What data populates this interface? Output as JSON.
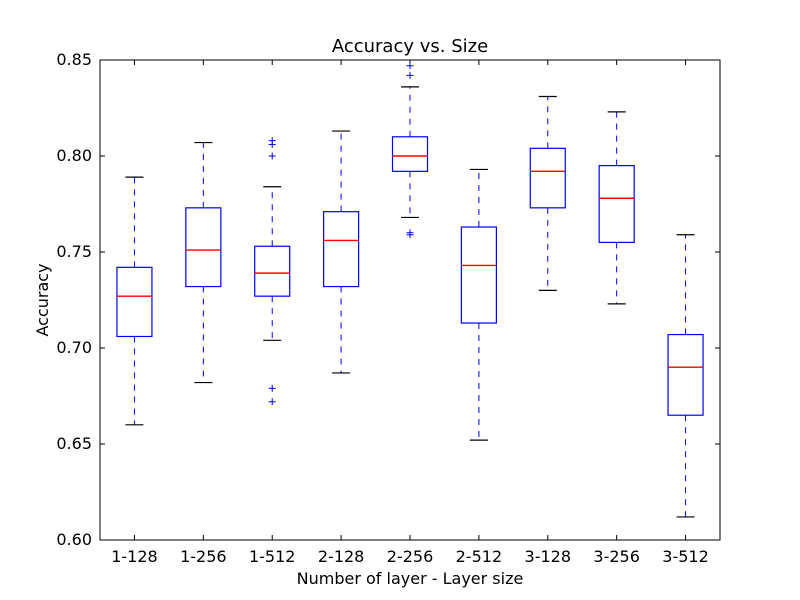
{
  "chart_data": {
    "type": "box",
    "title": "Accuracy vs. Size",
    "xlabel": "Number of layer - Layer size",
    "ylabel": "Accuracy",
    "ylim": [
      0.6,
      0.85
    ],
    "yticks": [
      "0.60",
      "0.65",
      "0.70",
      "0.75",
      "0.80",
      "0.85"
    ],
    "grid": false,
    "colors": {
      "box": "#0000ff",
      "median": "#ff0000",
      "whisker": "#0000ff",
      "cap": "#000000",
      "outlier": "#0000ff"
    },
    "categories": [
      "1-128",
      "1-256",
      "1-512",
      "2-128",
      "2-256",
      "2-512",
      "3-128",
      "3-256",
      "3-512"
    ],
    "boxes": [
      {
        "whislo": 0.66,
        "q1": 0.706,
        "med": 0.727,
        "q3": 0.742,
        "whishi": 0.789,
        "fliers": []
      },
      {
        "whislo": 0.682,
        "q1": 0.732,
        "med": 0.751,
        "q3": 0.773,
        "whishi": 0.807,
        "fliers": []
      },
      {
        "whislo": 0.704,
        "q1": 0.727,
        "med": 0.739,
        "q3": 0.753,
        "whishi": 0.784,
        "fliers": [
          0.672,
          0.679,
          0.8,
          0.806,
          0.808
        ]
      },
      {
        "whislo": 0.687,
        "q1": 0.732,
        "med": 0.756,
        "q3": 0.771,
        "whishi": 0.813,
        "fliers": []
      },
      {
        "whislo": 0.768,
        "q1": 0.792,
        "med": 0.8,
        "q3": 0.81,
        "whishi": 0.836,
        "fliers": [
          0.759,
          0.76,
          0.842,
          0.847
        ]
      },
      {
        "whislo": 0.652,
        "q1": 0.713,
        "med": 0.743,
        "q3": 0.763,
        "whishi": 0.793,
        "fliers": []
      },
      {
        "whislo": 0.73,
        "q1": 0.773,
        "med": 0.792,
        "q3": 0.804,
        "whishi": 0.831,
        "fliers": []
      },
      {
        "whislo": 0.723,
        "q1": 0.755,
        "med": 0.778,
        "q3": 0.795,
        "whishi": 0.823,
        "fliers": []
      },
      {
        "whislo": 0.612,
        "q1": 0.665,
        "med": 0.69,
        "q3": 0.707,
        "whishi": 0.759,
        "fliers": []
      }
    ]
  }
}
